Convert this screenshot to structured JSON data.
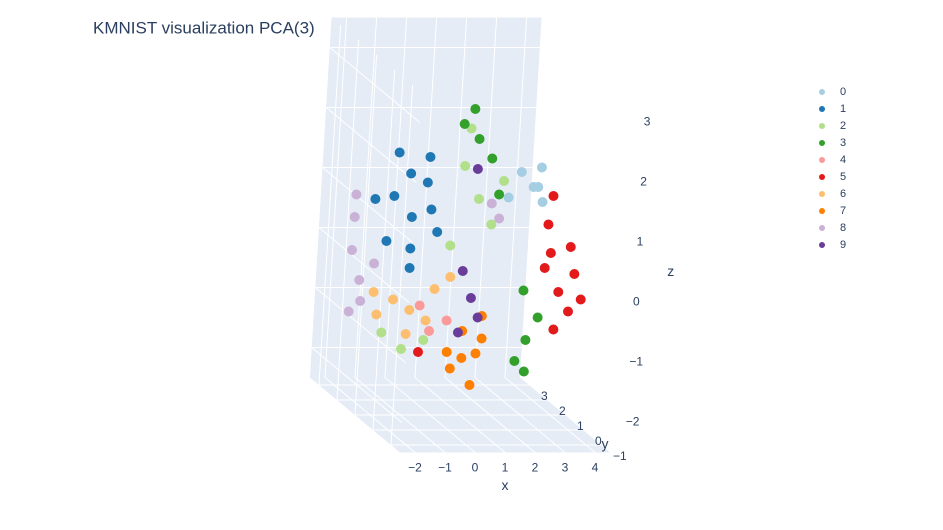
{
  "chart_data": {
    "type": "scatter3d",
    "title": "KMNIST visualization PCA(3)",
    "xlabel": "x",
    "ylabel": "y",
    "zlabel": "z",
    "xlim": [
      -2.5,
      4.5
    ],
    "ylim": [
      -1.5,
      3.5
    ],
    "zlim": [
      -2.5,
      3.5
    ],
    "xticks": [
      {
        "value": -2,
        "label": "−2"
      },
      {
        "value": -1,
        "label": "−1"
      },
      0,
      1,
      2,
      3,
      4
    ],
    "yticks": [
      {
        "value": -1,
        "label": "−1"
      },
      0,
      1,
      2,
      3
    ],
    "zticks": [
      {
        "value": -2,
        "label": "−2"
      },
      {
        "value": -1,
        "label": "−1"
      },
      0,
      1,
      2,
      3
    ],
    "grid": true,
    "series": [
      {
        "name": "0",
        "color": "#a6cee3",
        "x": [
          3.0,
          2.7,
          3.2,
          2.5,
          3.3,
          2.9
        ],
        "y": [
          1.0,
          1.2,
          0.8,
          1.5,
          1.1,
          0.6
        ],
        "z": [
          1.3,
          1.5,
          1.1,
          1.0,
          1.6,
          1.4
        ]
      },
      {
        "name": "1",
        "color": "#1f78b4",
        "x": [
          -1.0,
          -1.5,
          -0.6,
          -1.8,
          -0.8,
          -1.3,
          -0.3,
          -2.0,
          -1.1,
          -0.5,
          -1.6,
          0
        ],
        "y": [
          1,
          1.2,
          0.9,
          1.0,
          1.3,
          0.7,
          1.1,
          1.4,
          0.8,
          1.0,
          0.9,
          1.2
        ],
        "z": [
          0.8,
          1.1,
          1.4,
          0.4,
          0.2,
          1.6,
          0.9,
          1.0,
          0.0,
          1.8,
          1.9,
          0.5
        ]
      },
      {
        "name": "2",
        "color": "#b2df8a",
        "x": [
          1.2,
          0.8,
          1.6,
          1.0,
          -1.1,
          -0.5,
          0.4,
          2.0,
          -1.6
        ],
        "y": [
          1,
          1.2,
          0.9,
          1.3,
          1,
          0.8,
          1.1,
          1.0,
          1.3
        ],
        "z": [
          1.1,
          1.6,
          0.7,
          2.2,
          -1.4,
          -1.2,
          0.3,
          1.4,
          -1.2
        ]
      },
      {
        "name": "3",
        "color": "#33a02c",
        "x": [
          1.1,
          0.7,
          1.5,
          0.9,
          2.4,
          2.2,
          2.7,
          2.3,
          1.8,
          2.6
        ],
        "y": [
          1,
          1.2,
          0.9,
          1.0,
          0,
          0.2,
          -0.1,
          0.1,
          0.9,
          0.3
        ],
        "z": [
          2.1,
          2.3,
          1.8,
          2.6,
          -1,
          -1.4,
          -0.6,
          -0.2,
          1.2,
          -1.6
        ]
      },
      {
        "name": "4",
        "color": "#fb9a99",
        "x": [
          -0.2,
          0.3,
          -0.5
        ],
        "y": [
          1,
          0.9,
          1.1
        ],
        "z": [
          -1.1,
          -0.9,
          -0.7
        ]
      },
      {
        "name": "5",
        "color": "#e31a1c",
        "x": [
          3.4,
          3.2,
          3.7,
          3.0,
          3.9,
          3.5,
          2.9,
          3.6,
          3.3,
          4.1,
          -0.4
        ],
        "y": [
          0,
          0.2,
          -0.1,
          0.1,
          0.0,
          0.3,
          0.0,
          -0.2,
          0.4,
          -0.1,
          1.2
        ],
        "z": [
          -0.2,
          0.4,
          -0.5,
          0.9,
          0.1,
          -0.9,
          0.2,
          0.6,
          1.3,
          -0.3,
          -1.5
        ]
      },
      {
        "name": "6",
        "color": "#fdbf6f",
        "x": [
          -0.9,
          -1.4,
          -0.4,
          -1.8,
          -0.1,
          -1.1,
          0.4,
          -2.0
        ],
        "y": [
          1,
          1.1,
          0.9,
          1.3,
          1,
          0.8,
          1.0,
          1.2
        ],
        "z": [
          -0.75,
          -0.6,
          -0.9,
          -0.9,
          -0.4,
          -1.1,
          -0.2,
          -0.5
        ]
      },
      {
        "name": "7",
        "color": "#ff7f00",
        "x": [
          0.3,
          0.0,
          0.7,
          0.4,
          -0.2,
          1.0,
          0.5,
          0.9
        ],
        "y": [
          0,
          0.1,
          -0.1,
          0.2,
          0.0,
          0.1,
          -0.2,
          0.0
        ],
        "z": [
          -1.3,
          -1.5,
          -1.2,
          -0.9,
          -1.2,
          -1.0,
          -1.7,
          -0.6
        ]
      },
      {
        "name": "8",
        "color": "#cab2d6",
        "x": [
          -2,
          -2.3,
          -1.8,
          -2.4,
          -1.6,
          -2.1,
          1.7,
          2.1,
          -2.2
        ],
        "y": [
          2,
          2,
          2.2,
          1.8,
          1.9,
          2.3,
          1.1,
          1.3,
          2.1
        ],
        "z": [
          -0.5,
          0.0,
          -0.9,
          0.6,
          -0.2,
          -1.1,
          1.0,
          0.7,
          0.9
        ]
      },
      {
        "name": "9",
        "color": "#6a3d9a",
        "x": [
          0.5,
          0.3,
          0.7,
          0.2,
          0.6
        ],
        "y": [
          0,
          0.2,
          -0.1,
          0.1,
          0.2
        ],
        "z": [
          -0.3,
          0.1,
          -0.6,
          -0.9,
          1.8
        ]
      }
    ]
  }
}
